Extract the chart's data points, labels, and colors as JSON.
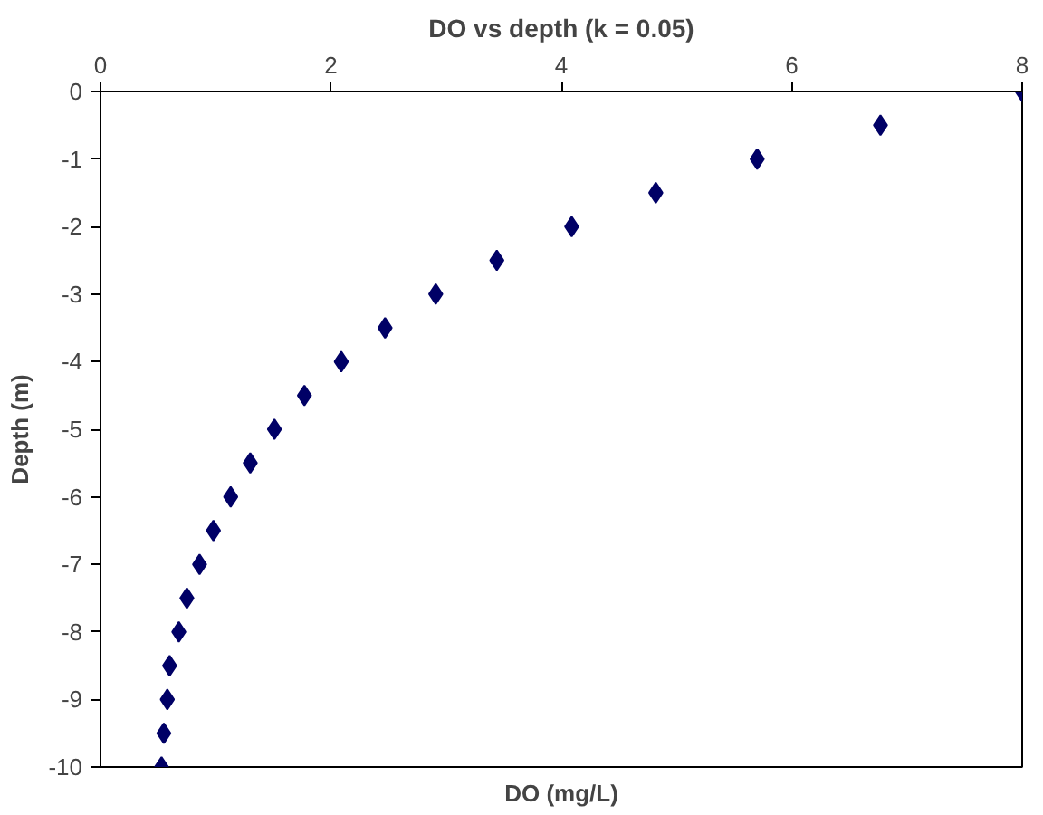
{
  "chart_data": {
    "type": "scatter",
    "title": "DO vs depth (k = 0.05)",
    "xlabel": "DO (mg/L)",
    "ylabel": "Depth (m)",
    "x": [
      8.0,
      6.77,
      5.7,
      4.82,
      4.09,
      3.44,
      2.91,
      2.47,
      2.09,
      1.77,
      1.51,
      1.3,
      1.13,
      0.98,
      0.86,
      0.75,
      0.68,
      0.6,
      0.58,
      0.55,
      0.53
    ],
    "series": [
      {
        "color": "#000066",
        "values": [
          0,
          -0.5,
          -1,
          -1.5,
          -2,
          -2.5,
          -3,
          -3.5,
          -4,
          -4.5,
          -5,
          -5.5,
          -6,
          -6.5,
          -7,
          -7.5,
          -8,
          -8.5,
          -9,
          -9.5,
          -10
        ]
      }
    ],
    "xlim": [
      0,
      8
    ],
    "xticks": [
      0,
      2,
      4,
      6,
      8
    ],
    "ylim": [
      -10,
      0
    ],
    "yticks": [
      0,
      -1,
      -2,
      -3,
      -4,
      -5,
      -6,
      -7,
      -8,
      -9,
      -10
    ],
    "marker": "diamond",
    "grid": false
  }
}
